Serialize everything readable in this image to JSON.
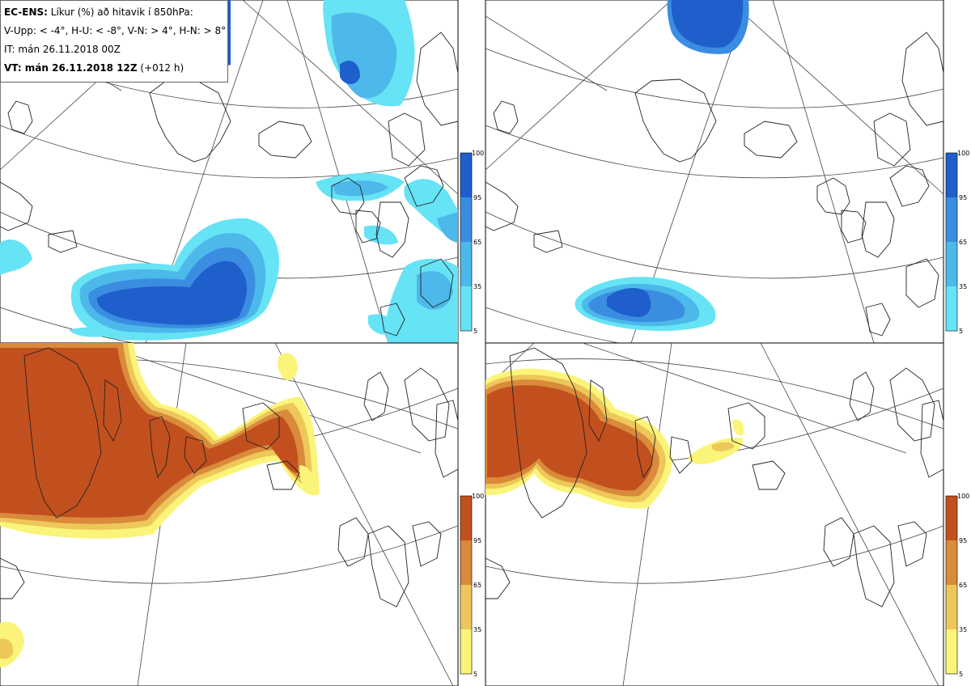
{
  "header": {
    "title_bold": "EC-ENS:",
    "title_rest": " Líkur (%) að hitavik í 850hPa:",
    "thresholds": "V-Upp: < -4°, H-U: < -8°, V-N: > 4°, H-N: > 8°",
    "init_time": "IT: mán 26.11.2018 00Z",
    "valid_bold": "VT: mán 26.11.2018 12Z",
    "valid_rest": " (+012 h)"
  },
  "colorbars": {
    "ticks": [
      "100",
      "95",
      "65",
      "35",
      "5"
    ],
    "cold_colors": [
      "#1e5fcc",
      "#3a8de0",
      "#4db8ea",
      "#66e3f5"
    ],
    "warm_colors": [
      "#c2501e",
      "#d98a3a",
      "#edc75a",
      "#fbf47a"
    ]
  },
  "panels": [
    {
      "id": "top-left",
      "variable": "V-Upp",
      "type": "cold"
    },
    {
      "id": "top-right",
      "variable": "H-U",
      "type": "cold"
    },
    {
      "id": "bottom-left",
      "variable": "V-N",
      "type": "warm"
    },
    {
      "id": "bottom-right",
      "variable": "H-N",
      "type": "warm"
    }
  ]
}
